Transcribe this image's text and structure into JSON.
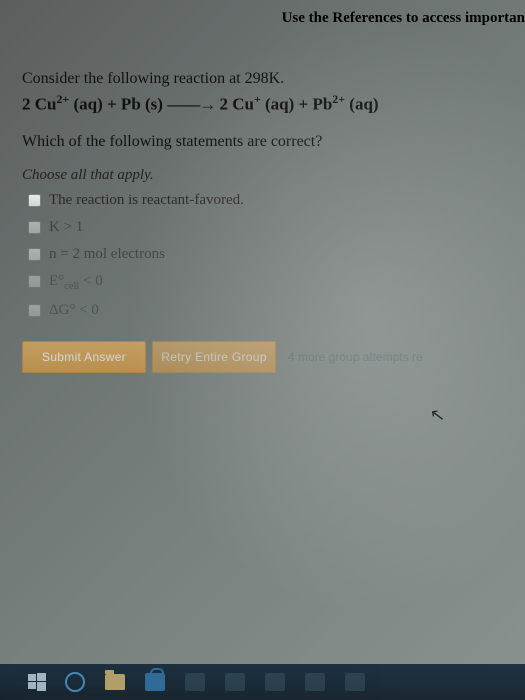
{
  "header": {
    "references_text": "Use the References to access importan"
  },
  "question": {
    "prompt": "Consider the following reaction at 298K.",
    "equation_html": "2 Cu<sup>2+</sup> (aq) + Pb (s) <span class=\"arrow\">——→</span> 2 Cu<sup>+</sup> (aq) + Pb<sup>2+</sup> (aq)",
    "which": "Which of the following statements are correct?",
    "choose": "Choose all that apply."
  },
  "options": [
    {
      "label_html": "The reaction is reactant-favored.",
      "fade": ""
    },
    {
      "label_html": "K &gt; 1",
      "fade": "faded"
    },
    {
      "label_html": "n = 2 mol electrons",
      "fade": "faded"
    },
    {
      "label_html": "E°<sub>cell</sub> &lt; 0",
      "fade": "vfaded"
    },
    {
      "label_html": "ΔG° &lt; 0",
      "fade": "vfaded"
    }
  ],
  "buttons": {
    "submit": "Submit Answer",
    "retry": "Retry Entire Group",
    "attempts": "4 more group attempts re"
  },
  "colors": {
    "button_bg": "#e0a84f",
    "taskbar_bg": "#0d2235"
  }
}
